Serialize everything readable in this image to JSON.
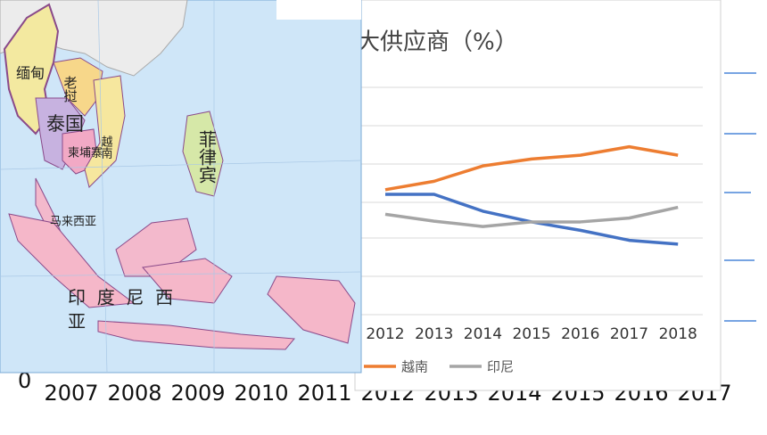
{
  "background": {
    "zero_label": "0",
    "x_labels": [
      "2007",
      "2008",
      "2009",
      "2010",
      "2011",
      "2012",
      "2013",
      "2014",
      "2015",
      "2016",
      "2017"
    ]
  },
  "chart_data": {
    "type": "line",
    "title": "大供应商（%）",
    "categories": [
      "2012",
      "2013",
      "2014",
      "2015",
      "2016",
      "2017",
      "2018"
    ],
    "series": [
      {
        "color": "#4472c4",
        "values": [
          15.7,
          15.7,
          13.5,
          12.1,
          11.0,
          9.7,
          9.2
        ]
      },
      {
        "name": "越南",
        "color": "#ed7d31",
        "values": [
          16.3,
          17.4,
          19.4,
          20.3,
          20.8,
          21.9,
          20.8
        ]
      },
      {
        "name": "印尼",
        "color": "#a5a5a5",
        "values": [
          13.1,
          12.2,
          11.5,
          12.1,
          12.1,
          12.6,
          14.0
        ]
      }
    ],
    "ylim": [
      0,
      30
    ],
    "grid": true
  },
  "map": {
    "labels": [
      "缅甸",
      "老挝",
      "泰国",
      "柬埔寨",
      "越南",
      "菲律宾",
      "马来西亚",
      "印  度  尼  西",
      "亚"
    ]
  }
}
